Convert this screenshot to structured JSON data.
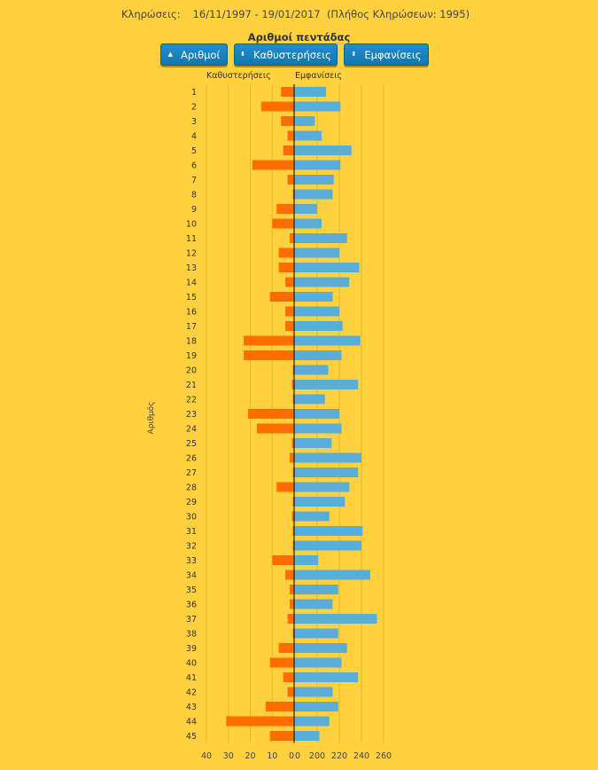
{
  "header": {
    "label": "Κληρώσεις:",
    "date_range": "16/11/1997 - 19/01/2017",
    "count_text": "(Πλήθος Κληρώσεων: 1995)"
  },
  "buttons": [
    {
      "label": "Αριθμοί",
      "icon": "sort-up-icon",
      "glyph": "▲"
    },
    {
      "label": "Καθυστερήσεις",
      "icon": "sort-icon",
      "glyph": "⬍"
    },
    {
      "label": "Εμφανίσεις",
      "icon": "sort-icon",
      "glyph": "⬍"
    }
  ],
  "colors": {
    "background": "#ffd13f",
    "delays": "#ff6d00",
    "appearances": "#58aed8",
    "button": "#1a84bd"
  },
  "chart_data": {
    "type": "bar",
    "orientation": "horizontal-diverging",
    "title": "Αριθμοί πεντάδας",
    "ylabel": "Αριθμός",
    "grid": true,
    "categories": [
      "1",
      "2",
      "3",
      "4",
      "5",
      "6",
      "7",
      "8",
      "9",
      "10",
      "11",
      "12",
      "13",
      "14",
      "15",
      "16",
      "17",
      "18",
      "19",
      "20",
      "21",
      "22",
      "23",
      "24",
      "25",
      "26",
      "27",
      "28",
      "29",
      "30",
      "31",
      "32",
      "33",
      "34",
      "35",
      "36",
      "37",
      "38",
      "39",
      "40",
      "41",
      "42",
      "43",
      "44",
      "45"
    ],
    "series": [
      {
        "name": "Καθυστερήσεις",
        "direction": "left",
        "axis_ticks": [
          "40",
          "30",
          "20",
          "10",
          "0"
        ],
        "xlim": [
          0,
          40
        ],
        "values": [
          6,
          15,
          6,
          3,
          5,
          19,
          3,
          0,
          8,
          10,
          2,
          7,
          7,
          4,
          11,
          4,
          4,
          23,
          23,
          0,
          1,
          0,
          21,
          17,
          1,
          2,
          0,
          8,
          0,
          1,
          0,
          0,
          10,
          4,
          2,
          2,
          3,
          0,
          7,
          11,
          5,
          3,
          13,
          31,
          11
        ]
      },
      {
        "name": "Εμφανίσεις",
        "direction": "right",
        "axis_ticks": [
          "0",
          "200",
          "220",
          "240",
          "260"
        ],
        "x_start": 180,
        "xlim": [
          180,
          260
        ],
        "values": [
          208,
          221,
          198,
          204,
          231,
          221,
          215,
          214,
          200,
          204,
          227,
          220,
          238,
          229,
          214,
          220,
          223,
          239,
          222,
          210,
          237,
          207,
          220,
          222,
          213,
          240,
          237,
          229,
          225,
          211,
          241,
          240,
          201,
          248,
          219,
          214,
          254,
          219,
          227,
          222,
          237,
          214,
          219,
          211,
          202
        ]
      }
    ]
  }
}
